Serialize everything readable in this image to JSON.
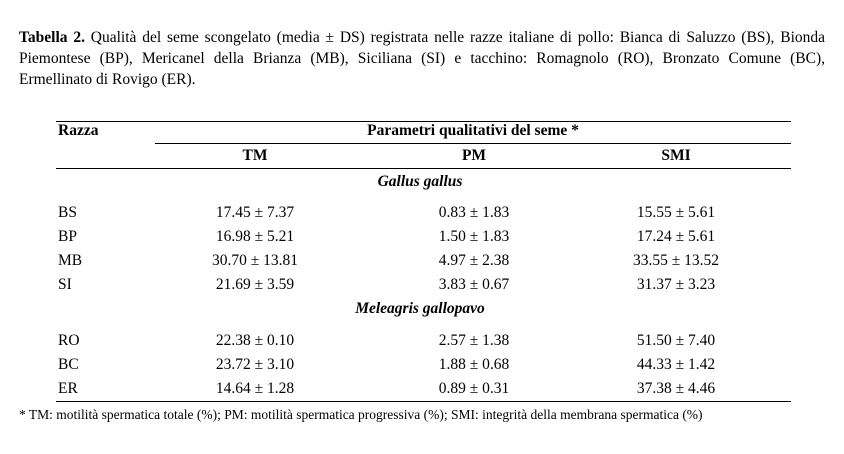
{
  "caption": {
    "label": "Tabella 2.",
    "text": "Qualità del seme scongelato (media ± DS) registrata nelle razze italiane di pollo: Bianca di Saluzzo (BS), Bionda Piemontese (BP), Mericanel della Brianza (MB), Siciliana (SI) e tacchino: Romagnolo (RO), Bronzato Comune (BC), Ermellinato di Rovigo (ER)."
  },
  "table": {
    "header_razza": "Razza",
    "header_group": "Parametri qualitativi del seme *",
    "columns": [
      "TM",
      "PM",
      "SMI"
    ],
    "groups": [
      {
        "name": "Gallus gallus",
        "rows": [
          {
            "razza": "BS",
            "tm": "17.45 ± 7.37",
            "pm": "0.83 ± 1.83",
            "smi": "15.55 ± 5.61"
          },
          {
            "razza": "BP",
            "tm": "16.98 ± 5.21",
            "pm": "1.50 ± 1.83",
            "smi": "17.24 ± 5.61"
          },
          {
            "razza": "MB",
            "tm": "30.70 ± 13.81",
            "pm": "4.97 ± 2.38",
            "smi": "33.55 ± 13.52"
          },
          {
            "razza": "SI",
            "tm": "21.69 ± 3.59",
            "pm": "3.83 ± 0.67",
            "smi": "31.37 ± 3.23"
          }
        ]
      },
      {
        "name": "Meleagris gallopavo",
        "rows": [
          {
            "razza": "RO",
            "tm": "22.38 ± 0.10",
            "pm": "2.57 ± 1.38",
            "smi": "51.50 ± 7.40"
          },
          {
            "razza": "BC",
            "tm": "23.72 ± 3.10",
            "pm": "1.88 ± 0.68",
            "smi": "44.33 ± 1.42"
          },
          {
            "razza": "ER",
            "tm": "14.64 ± 1.28",
            "pm": "0.89 ± 0.31",
            "smi": "37.38 ± 4.46"
          }
        ]
      }
    ]
  },
  "footnote": "* TM: motilità spermatica totale (%); PM: motilità spermatica progressiva (%); SMI: integrità della membrana spermatica (%)"
}
